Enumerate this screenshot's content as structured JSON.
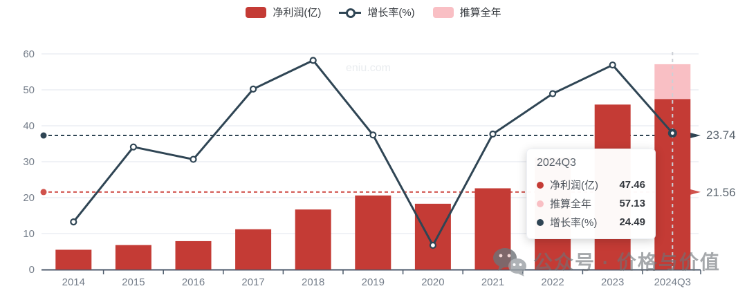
{
  "legend": {
    "items": [
      {
        "label": "净利润(亿)",
        "marker": "bar",
        "color": "#c43b35"
      },
      {
        "label": "增长率(%)",
        "marker": "line",
        "color": "#2f4554"
      },
      {
        "label": "推算全年",
        "marker": "bar",
        "color": "#f9bfc4"
      }
    ]
  },
  "watermarks": {
    "center": "eniu.com",
    "bottom": "公众号 · 价格与价值"
  },
  "tooltip": {
    "title": "2024Q3",
    "rows": [
      {
        "label": "净利润(亿)",
        "value": "47.46",
        "color": "#c43b35"
      },
      {
        "label": "推算全年",
        "value": "57.13",
        "color": "#f9bfc4"
      },
      {
        "label": "增长率(%)",
        "value": "24.49",
        "color": "#2f4554"
      }
    ]
  },
  "chart_data": {
    "type": "bar+line",
    "categories": [
      "2014",
      "2015",
      "2016",
      "2017",
      "2018",
      "2019",
      "2020",
      "2021",
      "2022",
      "2023",
      "2024Q3"
    ],
    "series": [
      {
        "name": "净利润(亿)",
        "type": "bar",
        "axis": "left",
        "color": "#c43b35",
        "values": [
          5.5,
          6.8,
          7.9,
          11.2,
          16.7,
          20.6,
          18.3,
          22.6,
          31.2,
          45.9,
          47.46
        ]
      },
      {
        "name": "推算全年",
        "type": "bar-stack-top",
        "axis": "left",
        "color": "#f9bfc4",
        "values": [
          null,
          null,
          null,
          null,
          null,
          null,
          null,
          null,
          null,
          null,
          57.13
        ]
      },
      {
        "name": "增长率(%)",
        "type": "line",
        "axis": "right",
        "color": "#2f4554",
        "values": [
          -4.3,
          20.0,
          16.0,
          38.8,
          48.1,
          23.9,
          -11.9,
          24.2,
          37.3,
          46.6,
          24.49
        ]
      }
    ],
    "ylabel": "",
    "xlabel": "",
    "ylim": [
      0,
      60
    ],
    "yticks": [
      0,
      10,
      20,
      30,
      40,
      50,
      60
    ],
    "y2lim": [
      -19.75,
      50.2
    ],
    "grid": true,
    "legend_position": "top",
    "marklines": [
      {
        "axis": "right",
        "value": 23.74,
        "label": "23.74",
        "color": "#2f4554",
        "style": "dashed"
      },
      {
        "axis": "left",
        "value": 21.56,
        "label": "21.56",
        "color": "#d0524c",
        "style": "dashed"
      }
    ],
    "highlight_index": 10,
    "axis_pointer_category": "2024Q3"
  },
  "colors": {
    "bar_red": "#c43b35",
    "bar_pink": "#f9bfc4",
    "line_navy": "#2f4554",
    "markline_red": "#d0524c",
    "gridline": "#ebeef3",
    "axis_line": "#4c5a6b",
    "axis_label": "#757e8a",
    "axis_pointer": "#ccd0d6"
  }
}
